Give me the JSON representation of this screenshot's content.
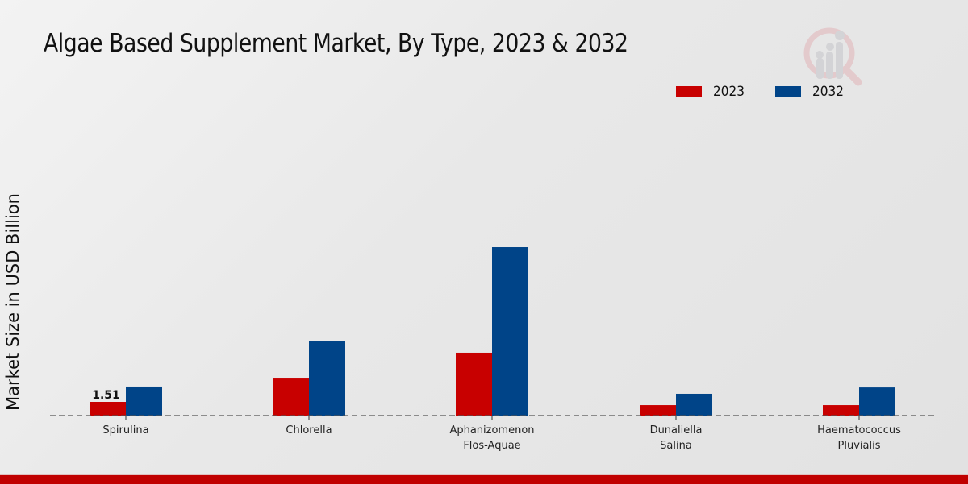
{
  "chart_data": {
    "type": "bar",
    "title": "Algae Based Supplement Market, By Type, 2023 & 2032",
    "xlabel": "",
    "ylabel": "Market Size in USD Billion",
    "categories": [
      [
        "Spirulina"
      ],
      [
        "Chlorella"
      ],
      [
        "Aphanizomenon",
        "Flos-Aquae"
      ],
      [
        "Dunaliella",
        "Salina"
      ],
      [
        "Haematococcus",
        "Pluvialis"
      ]
    ],
    "series": [
      {
        "name": "2023",
        "color": "#c80000",
        "values": [
          1.51,
          4.17,
          6.93,
          1.15,
          1.15
        ]
      },
      {
        "name": "2032",
        "color": "#004488",
        "values": [
          3.2,
          8.17,
          18.56,
          2.4,
          3.1
        ]
      }
    ],
    "data_labels": [
      {
        "series": 0,
        "index": 0,
        "text": "1.51"
      }
    ],
    "ylim": [
      0,
      20
    ],
    "grid": false,
    "legend_position": "top-right"
  }
}
